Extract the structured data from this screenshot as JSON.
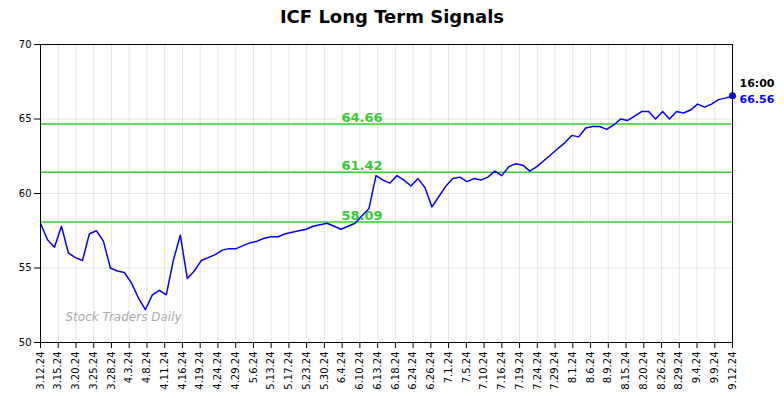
{
  "chart_data": {
    "type": "line",
    "title": "ICF Long Term Signals",
    "color": "blue",
    "grid": true,
    "x": [
      0,
      1,
      2,
      3,
      4,
      5,
      6,
      7,
      8,
      9,
      10,
      11,
      12,
      13,
      14,
      15,
      16,
      17,
      18,
      19,
      20,
      21,
      22,
      23,
      24,
      25,
      26,
      27,
      28,
      29,
      30,
      31,
      32,
      33,
      34,
      35,
      36,
      37,
      38,
      39,
      40,
      41,
      42,
      43,
      44,
      45,
      46,
      47,
      48,
      49,
      50,
      51,
      52,
      53,
      54,
      55,
      56,
      57,
      58,
      59,
      60,
      61,
      62,
      63,
      64,
      65,
      66,
      67,
      68,
      69,
      70,
      71,
      72,
      73,
      74,
      75,
      76,
      77,
      78,
      79,
      80,
      81,
      82,
      83,
      84,
      85,
      86,
      87,
      88,
      89,
      90,
      91,
      92,
      93,
      94,
      95,
      96,
      97,
      98,
      99
    ],
    "values": [
      58.0,
      56.9,
      56.4,
      57.8,
      56.0,
      55.7,
      55.5,
      57.3,
      57.5,
      56.8,
      55.0,
      54.8,
      54.7,
      54.0,
      53.0,
      52.2,
      53.2,
      53.5,
      53.2,
      55.5,
      57.2,
      54.3,
      54.8,
      55.5,
      55.7,
      55.9,
      56.2,
      56.3,
      56.3,
      56.5,
      56.7,
      56.8,
      57.0,
      57.1,
      57.1,
      57.3,
      57.4,
      57.5,
      57.6,
      57.8,
      57.9,
      58.0,
      57.8,
      57.6,
      57.8,
      58.0,
      58.5,
      59.0,
      61.2,
      60.9,
      60.7,
      61.2,
      60.9,
      60.5,
      61.0,
      60.4,
      59.1,
      59.8,
      60.5,
      61.0,
      61.1,
      60.8,
      61.0,
      60.9,
      61.1,
      61.5,
      61.2,
      61.8,
      62.0,
      61.9,
      61.5,
      61.8,
      62.2,
      62.6,
      63.0,
      63.4,
      63.9,
      63.8,
      64.4,
      64.5,
      64.5,
      64.3,
      64.6,
      65.0,
      64.9,
      65.2,
      65.5,
      65.5,
      65.0,
      65.5,
      65.0,
      65.5,
      65.4,
      65.6,
      66.0,
      65.8,
      66.0,
      66.3,
      66.4,
      66.56
    ],
    "xlim": [
      0,
      99
    ],
    "xticks": [
      {
        "value": 0,
        "label": "3.12.24"
      },
      {
        "value": 2.5384615384615383,
        "label": "3.15.24"
      },
      {
        "value": 5.076923076923077,
        "label": "3.20.24"
      },
      {
        "value": 7.615384615384615,
        "label": "3.25.24"
      },
      {
        "value": 10.153846153846153,
        "label": "3.28.24"
      },
      {
        "value": 12.692307692307692,
        "label": "4.3.24"
      },
      {
        "value": 15.23076923076923,
        "label": "4.8.24"
      },
      {
        "value": 17.76923076923077,
        "label": "4.11.24"
      },
      {
        "value": 20.307692307692307,
        "label": "4.16.24"
      },
      {
        "value": 22.846153846153847,
        "label": "4.19.24"
      },
      {
        "value": 25.384615384615383,
        "label": "4.24.24"
      },
      {
        "value": 27.923076923076923,
        "label": "4.29.24"
      },
      {
        "value": 30.46153846153846,
        "label": "5.6.24"
      },
      {
        "value": 33,
        "label": "5.13.24"
      },
      {
        "value": 35.53846153846154,
        "label": "5.17.24"
      },
      {
        "value": 38.07692307692308,
        "label": "5.23.24"
      },
      {
        "value": 40.61538461538461,
        "label": "5.30.24"
      },
      {
        "value": 43.15384615384615,
        "label": "6.4.24"
      },
      {
        "value": 45.69230769230769,
        "label": "6.10.24"
      },
      {
        "value": 48.23076923076923,
        "label": "6.13.24"
      },
      {
        "value": 50.76923076923077,
        "label": "6.18.24"
      },
      {
        "value": 53.30769230769231,
        "label": "6.24.24"
      },
      {
        "value": 55.84615384615385,
        "label": "6.26.24"
      },
      {
        "value": 58.38461538461539,
        "label": "7.1.24"
      },
      {
        "value": 60.92307692307692,
        "label": "7.5.24"
      },
      {
        "value": 63.46153846153846,
        "label": "7.10.24"
      },
      {
        "value": 66,
        "label": "7.16.24"
      },
      {
        "value": 68.53846153846153,
        "label": "7.19.24"
      },
      {
        "value": 71.07692307692308,
        "label": "7.24.24"
      },
      {
        "value": 73.61538461538461,
        "label": "7.29.24"
      },
      {
        "value": 76.15384615384616,
        "label": "8.1.24"
      },
      {
        "value": 78.6923076923077,
        "label": "8.6.24"
      },
      {
        "value": 81.23076923076923,
        "label": "8.9.24"
      },
      {
        "value": 83.76923076923077,
        "label": "8.15.24"
      },
      {
        "value": 86.3076923076923,
        "label": "8.20.24"
      },
      {
        "value": 88.84615384615384,
        "label": "8.26.24"
      },
      {
        "value": 91.38461538461539,
        "label": "8.29.24"
      },
      {
        "value": 93.92307692307692,
        "label": "9.4.24"
      },
      {
        "value": 96.46153846153847,
        "label": "9.9.24"
      },
      {
        "value": 99,
        "label": "9.12.24"
      }
    ],
    "ylim": [
      50,
      70
    ],
    "yticks": [
      50,
      55,
      60,
      65,
      70
    ],
    "reference_lines": [
      {
        "y": 58.09,
        "label": "58.09",
        "color": "#33cc33"
      },
      {
        "y": 61.42,
        "label": "61.42",
        "color": "#33cc33"
      },
      {
        "y": 64.66,
        "label": "64.66",
        "color": "#33cc33"
      }
    ],
    "annotations": [
      {
        "text": "16:00",
        "x": 99,
        "y": 66.56,
        "color": "black"
      },
      {
        "text": "66.56",
        "x": 99,
        "y": 66.56,
        "color": "blue",
        "marker": "circle"
      }
    ],
    "watermark": {
      "text": "Stock Traders Daily",
      "color": "#aaaaaa"
    }
  }
}
